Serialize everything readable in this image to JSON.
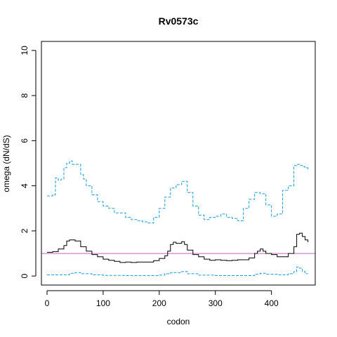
{
  "chart_data": {
    "type": "line",
    "title": "Rv0573c",
    "xlabel": "codon",
    "ylabel": "omega (dN/dS)",
    "xlim": [
      -10,
      478
    ],
    "ylim": [
      -0.4,
      10.4
    ],
    "x_ticks": [
      0,
      100,
      200,
      300,
      400
    ],
    "y_ticks": [
      0,
      2,
      4,
      6,
      8,
      10
    ],
    "grid": false,
    "reference_line": {
      "y": 1,
      "color": "#c060c0"
    },
    "series": [
      {
        "style": "solid",
        "color": "#000000",
        "x": [
          0,
          10,
          20,
          30,
          35,
          40,
          50,
          55,
          60,
          70,
          80,
          90,
          100,
          110,
          120,
          130,
          140,
          150,
          160,
          170,
          180,
          190,
          200,
          210,
          215,
          220,
          225,
          230,
          240,
          245,
          250,
          260,
          270,
          280,
          290,
          300,
          310,
          320,
          330,
          340,
          350,
          360,
          370,
          375,
          380,
          385,
          390,
          400,
          410,
          420,
          430,
          440,
          445,
          450,
          455,
          460,
          465
        ],
        "y": [
          1.05,
          1.08,
          1.2,
          1.35,
          1.55,
          1.6,
          1.55,
          1.55,
          1.3,
          1.1,
          0.95,
          0.85,
          0.75,
          0.7,
          0.65,
          0.6,
          0.62,
          0.6,
          0.62,
          0.62,
          0.62,
          0.68,
          0.78,
          0.9,
          1.1,
          1.4,
          1.5,
          1.45,
          1.52,
          1.4,
          1.15,
          0.95,
          0.85,
          0.75,
          0.7,
          0.72,
          0.7,
          0.68,
          0.7,
          0.72,
          0.72,
          0.8,
          1.0,
          1.1,
          1.2,
          1.1,
          1.0,
          0.95,
          0.85,
          0.85,
          1.0,
          1.3,
          1.85,
          1.9,
          1.75,
          1.6,
          1.5
        ]
      },
      {
        "style": "dashed",
        "color": "#1e9be0",
        "x": [
          0,
          5,
          10,
          15,
          20,
          25,
          30,
          35,
          40,
          45,
          50,
          55,
          60,
          65,
          70,
          80,
          90,
          100,
          110,
          120,
          130,
          140,
          150,
          160,
          170,
          180,
          190,
          200,
          210,
          220,
          230,
          240,
          250,
          260,
          270,
          280,
          290,
          300,
          310,
          320,
          330,
          340,
          350,
          360,
          370,
          380,
          390,
          400,
          410,
          420,
          430,
          440,
          445,
          450,
          455,
          460,
          465
        ],
        "y": [
          3.55,
          3.55,
          3.6,
          4.35,
          4.25,
          4.3,
          4.8,
          5.0,
          5.1,
          4.95,
          4.95,
          4.95,
          4.5,
          4.3,
          4.0,
          3.6,
          3.3,
          3.1,
          3.0,
          2.8,
          2.8,
          2.6,
          2.5,
          2.45,
          2.4,
          2.35,
          2.6,
          3.0,
          3.5,
          3.9,
          4.05,
          4.2,
          3.7,
          3.1,
          2.7,
          2.5,
          2.6,
          2.65,
          2.75,
          2.6,
          2.55,
          2.45,
          3.0,
          3.4,
          3.7,
          3.65,
          3.15,
          2.65,
          2.75,
          3.8,
          4.0,
          4.9,
          4.95,
          4.9,
          4.85,
          4.8,
          4.7
        ]
      },
      {
        "style": "dashed",
        "color": "#1e9be0",
        "x": [
          0,
          20,
          40,
          50,
          60,
          80,
          100,
          140,
          180,
          200,
          210,
          220,
          230,
          240,
          250,
          270,
          300,
          340,
          370,
          380,
          390,
          410,
          430,
          440,
          445,
          450,
          455,
          460,
          465
        ],
        "y": [
          0.05,
          0.05,
          0.12,
          0.15,
          0.1,
          0.05,
          0.03,
          0.02,
          0.02,
          0.04,
          0.1,
          0.15,
          0.15,
          0.2,
          0.1,
          0.04,
          0.02,
          0.02,
          0.08,
          0.12,
          0.08,
          0.05,
          0.1,
          0.2,
          0.4,
          0.35,
          0.2,
          0.1,
          0.1
        ]
      }
    ]
  }
}
